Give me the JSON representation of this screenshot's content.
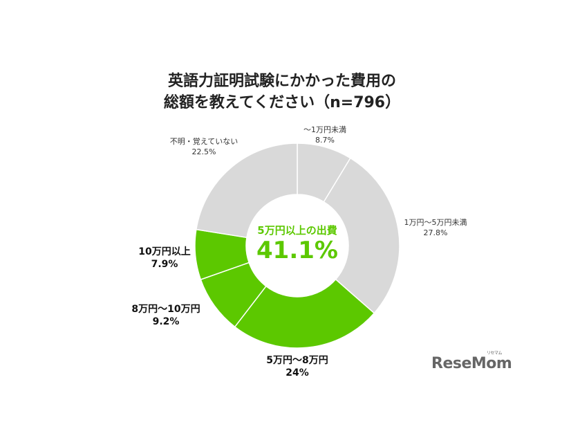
{
  "title_line1": "英語力証明試験にかかった費用の",
  "title_line2": "総額を教えてください（n=796）",
  "center_label": "5万円以上の出費",
  "center_value": "41.1%",
  "logo": "ReseMom",
  "logo_ruby": "リセマム",
  "colors": {
    "gray": "#d9d9d9",
    "green": "#5cc800"
  },
  "chart_data": {
    "type": "pie",
    "donut": true,
    "title": "英語力証明試験にかかった費用の総額を教えてください（n=796）",
    "slices": [
      {
        "label": "〜1万円未満",
        "value": 8.7,
        "value_label": "8.7%",
        "color": "#d9d9d9"
      },
      {
        "label": "1万円〜5万円未満",
        "value": 27.8,
        "value_label": "27.8%",
        "color": "#d9d9d9"
      },
      {
        "label": "5万円〜8万円",
        "value": 24,
        "value_label": "24%",
        "color": "#5cc800"
      },
      {
        "label": "8万円〜10万円",
        "value": 9.2,
        "value_label": "9.2%",
        "color": "#5cc800"
      },
      {
        "label": "10万円以上",
        "value": 7.9,
        "value_label": "7.9%",
        "color": "#5cc800"
      },
      {
        "label": "不明・覚えていない",
        "value": 22.5,
        "value_label": "22.5%",
        "color": "#d9d9d9"
      }
    ]
  }
}
